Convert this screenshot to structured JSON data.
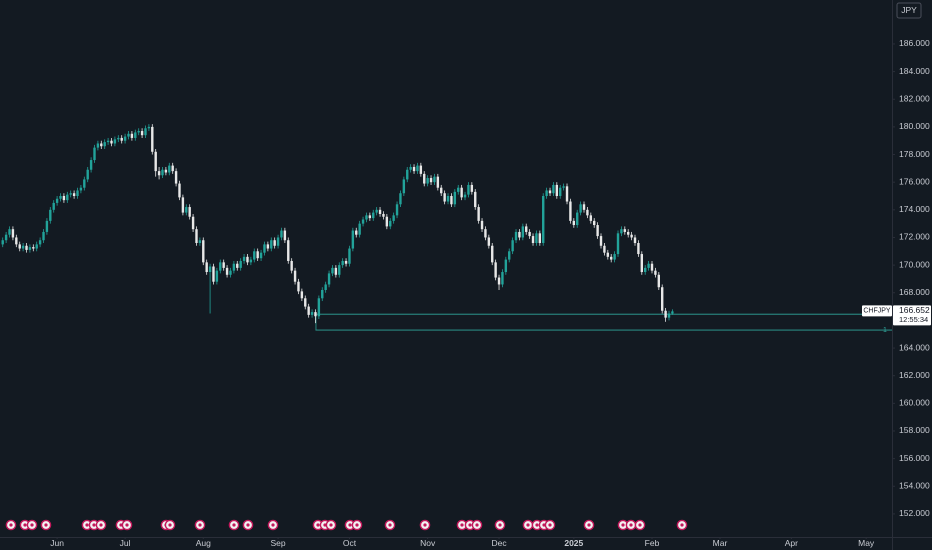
{
  "chart_data": {
    "type": "candlestick",
    "symbol": "CHFJPY",
    "currency": "JPY",
    "last_price": 166.652,
    "countdown": "12:55:34",
    "up_color": "#22a39a",
    "down_color": "#e8e8e8",
    "level_color": "#2fa69b",
    "xlim": [
      -16.8,
      245.6
    ],
    "ylim": [
      150.33,
      189.18
    ],
    "yticks": [
      {
        "value": 152,
        "label": "152.000"
      },
      {
        "value": 154,
        "label": "154.000"
      },
      {
        "value": 156,
        "label": "156.000"
      },
      {
        "value": 158,
        "label": "158.000"
      },
      {
        "value": 160,
        "label": "160.000"
      },
      {
        "value": 162,
        "label": "162.000"
      },
      {
        "value": 164,
        "label": "164.000"
      },
      {
        "value": 166,
        "label": "166.000"
      },
      {
        "value": 168,
        "label": "168.000"
      },
      {
        "value": 170,
        "label": "170.000"
      },
      {
        "value": 172,
        "label": "172.000"
      },
      {
        "value": 174,
        "label": "174.000"
      },
      {
        "value": 176,
        "label": "176.000"
      },
      {
        "value": 178,
        "label": "178.000"
      },
      {
        "value": 180,
        "label": "180.000"
      },
      {
        "value": 182,
        "label": "182.000"
      },
      {
        "value": 184,
        "label": "184.000"
      },
      {
        "value": 186,
        "label": "186.000"
      }
    ],
    "xticks": [
      {
        "value": 0,
        "label": "Jun"
      },
      {
        "value": 20,
        "label": "Jul"
      },
      {
        "value": 43,
        "label": "Aug"
      },
      {
        "value": 65,
        "label": "Sep"
      },
      {
        "value": 86,
        "label": "Oct"
      },
      {
        "value": 109,
        "label": "Nov"
      },
      {
        "value": 130,
        "label": "Dec"
      },
      {
        "value": 152,
        "label": "2025"
      },
      {
        "value": 175,
        "label": "Feb"
      },
      {
        "value": 195,
        "label": "Mar"
      },
      {
        "value": 216,
        "label": "Apr"
      },
      {
        "value": 238,
        "label": "May"
      }
    ],
    "levels": [
      {
        "value": 166.45,
        "from_x": 76
      },
      {
        "value": 165.3,
        "from_x": 76,
        "label": "1"
      }
    ],
    "x": [
      -16,
      -15,
      -14,
      -13,
      -12,
      -11,
      -10,
      -9,
      -8,
      -7,
      -6,
      -5,
      -4,
      -3,
      -2,
      -1,
      0,
      1,
      2,
      3,
      4,
      5,
      6,
      7,
      8,
      9,
      10,
      11,
      12,
      13,
      14,
      15,
      16,
      17,
      18,
      19,
      20,
      21,
      22,
      23,
      24,
      25,
      26,
      27,
      28,
      29,
      30,
      31,
      32,
      33,
      34,
      35,
      36,
      37,
      38,
      39,
      40,
      41,
      42,
      43,
      44,
      45,
      46,
      47,
      48,
      49,
      50,
      51,
      52,
      53,
      54,
      55,
      56,
      57,
      58,
      59,
      60,
      61,
      62,
      63,
      64,
      65,
      66,
      67,
      68,
      69,
      70,
      71,
      72,
      73,
      74,
      75,
      76,
      77,
      78,
      79,
      80,
      81,
      82,
      83,
      84,
      85,
      86,
      87,
      88,
      89,
      90,
      91,
      92,
      93,
      94,
      95,
      96,
      97,
      98,
      99,
      100,
      101,
      102,
      103,
      104,
      105,
      106,
      107,
      108,
      109,
      110,
      111,
      112,
      113,
      114,
      115,
      116,
      117,
      118,
      119,
      120,
      121,
      122,
      123,
      124,
      125,
      126,
      127,
      128,
      129,
      130,
      131,
      132,
      133,
      134,
      135,
      136,
      137,
      138,
      139,
      140,
      141,
      142,
      143,
      144,
      145,
      146,
      147,
      148,
      149,
      150,
      151,
      152,
      153,
      154,
      155,
      156,
      157,
      158,
      159,
      160,
      161,
      162,
      163,
      164,
      165,
      166,
      167,
      168,
      169,
      170,
      171,
      172,
      173,
      174,
      175,
      176,
      177,
      178,
      179,
      180,
      181
    ],
    "ohlc": [
      [
        171.5,
        172.0,
        171.3,
        171.8
      ],
      [
        171.8,
        172.4,
        171.6,
        172.2
      ],
      [
        172.2,
        172.8,
        172.0,
        172.6
      ],
      [
        172.6,
        172.8,
        171.8,
        172.0
      ],
      [
        172.0,
        172.2,
        171.3,
        171.5
      ],
      [
        171.5,
        171.7,
        171.0,
        171.2
      ],
      [
        171.2,
        171.6,
        171.0,
        171.4
      ],
      [
        171.4,
        171.6,
        170.9,
        171.1
      ],
      [
        171.1,
        171.5,
        170.9,
        171.3
      ],
      [
        171.3,
        171.5,
        171.0,
        171.2
      ],
      [
        171.2,
        171.7,
        171.0,
        171.5
      ],
      [
        171.5,
        172.0,
        171.3,
        171.8
      ],
      [
        171.8,
        172.6,
        171.6,
        172.4
      ],
      [
        172.4,
        173.4,
        172.2,
        173.2
      ],
      [
        173.2,
        174.2,
        173.0,
        174.0
      ],
      [
        174.0,
        174.7,
        173.8,
        174.5
      ],
      [
        174.5,
        175.0,
        174.3,
        174.8
      ],
      [
        174.8,
        175.2,
        174.6,
        175.0
      ],
      [
        175.0,
        175.2,
        174.5,
        174.7
      ],
      [
        174.7,
        175.3,
        174.5,
        175.1
      ],
      [
        175.1,
        175.4,
        174.9,
        175.2
      ],
      [
        175.2,
        175.4,
        174.8,
        175.0
      ],
      [
        175.0,
        175.6,
        174.8,
        175.4
      ],
      [
        175.4,
        175.8,
        175.2,
        175.6
      ],
      [
        175.6,
        176.4,
        175.4,
        176.2
      ],
      [
        176.2,
        177.1,
        176.0,
        176.9
      ],
      [
        176.9,
        177.8,
        176.7,
        177.6
      ],
      [
        177.6,
        178.7,
        177.4,
        178.5
      ],
      [
        178.5,
        179.0,
        178.3,
        178.8
      ],
      [
        178.8,
        179.0,
        178.4,
        178.6
      ],
      [
        178.6,
        179.1,
        178.4,
        178.9
      ],
      [
        178.9,
        179.2,
        178.7,
        179.0
      ],
      [
        179.0,
        179.2,
        178.6,
        178.8
      ],
      [
        178.8,
        179.3,
        178.6,
        179.1
      ],
      [
        179.1,
        179.4,
        178.9,
        179.2
      ],
      [
        179.2,
        179.4,
        178.8,
        179.0
      ],
      [
        179.0,
        179.5,
        178.8,
        179.3
      ],
      [
        179.3,
        179.7,
        179.1,
        179.5
      ],
      [
        179.5,
        179.7,
        179.0,
        179.2
      ],
      [
        179.2,
        179.8,
        179.0,
        179.6
      ],
      [
        179.6,
        179.9,
        179.4,
        179.7
      ],
      [
        179.7,
        179.9,
        179.2,
        179.4
      ],
      [
        179.4,
        180.1,
        179.2,
        179.9
      ],
      [
        179.9,
        180.2,
        179.7,
        180.0
      ],
      [
        180.0,
        180.2,
        178.0,
        178.2
      ],
      [
        178.2,
        178.4,
        176.4,
        176.8
      ],
      [
        176.8,
        177.1,
        176.2,
        176.5
      ],
      [
        176.5,
        177.1,
        176.3,
        176.9
      ],
      [
        176.9,
        177.1,
        176.5,
        176.7
      ],
      [
        176.7,
        177.4,
        176.5,
        177.2
      ],
      [
        177.2,
        177.4,
        176.6,
        176.8
      ],
      [
        176.8,
        177.0,
        175.7,
        175.9
      ],
      [
        175.9,
        176.1,
        174.7,
        174.9
      ],
      [
        174.9,
        175.1,
        173.6,
        173.8
      ],
      [
        173.8,
        174.4,
        173.6,
        174.2
      ],
      [
        174.2,
        174.4,
        173.3,
        173.5
      ],
      [
        173.5,
        173.7,
        172.4,
        172.6
      ],
      [
        172.6,
        172.8,
        171.4,
        171.6
      ],
      [
        171.6,
        172.0,
        171.4,
        171.8
      ],
      [
        171.8,
        172.0,
        170.0,
        170.2
      ],
      [
        170.2,
        170.4,
        169.3,
        169.5
      ],
      [
        169.5,
        170.1,
        166.5,
        169.9
      ],
      [
        169.9,
        170.1,
        168.6,
        168.8
      ],
      [
        168.8,
        169.8,
        168.6,
        169.6
      ],
      [
        169.6,
        170.4,
        169.4,
        170.2
      ],
      [
        170.2,
        170.4,
        169.6,
        169.8
      ],
      [
        169.8,
        170.0,
        169.1,
        169.3
      ],
      [
        169.3,
        169.8,
        169.1,
        169.6
      ],
      [
        169.6,
        170.3,
        169.4,
        170.1
      ],
      [
        170.1,
        170.3,
        169.6,
        169.8
      ],
      [
        169.8,
        170.5,
        169.6,
        170.3
      ],
      [
        170.3,
        170.8,
        170.1,
        170.6
      ],
      [
        170.6,
        170.8,
        170.0,
        170.2
      ],
      [
        170.2,
        170.6,
        170.0,
        170.4
      ],
      [
        170.4,
        171.2,
        170.2,
        171.0
      ],
      [
        171.0,
        171.2,
        170.3,
        170.5
      ],
      [
        170.5,
        171.1,
        170.3,
        170.9
      ],
      [
        170.9,
        171.7,
        170.7,
        171.5
      ],
      [
        171.5,
        171.7,
        171.0,
        171.2
      ],
      [
        171.2,
        172.0,
        171.0,
        171.8
      ],
      [
        171.8,
        172.0,
        171.2,
        171.4
      ],
      [
        171.4,
        172.2,
        171.2,
        172.0
      ],
      [
        172.0,
        172.7,
        171.8,
        172.5
      ],
      [
        172.5,
        172.7,
        171.6,
        171.8
      ],
      [
        171.8,
        172.0,
        170.1,
        170.3
      ],
      [
        170.3,
        170.5,
        169.4,
        169.6
      ],
      [
        169.6,
        169.8,
        168.6,
        168.8
      ],
      [
        168.8,
        169.0,
        167.9,
        168.1
      ],
      [
        168.1,
        168.3,
        167.4,
        167.6
      ],
      [
        167.6,
        167.8,
        166.8,
        167.0
      ],
      [
        167.0,
        167.2,
        166.2,
        166.4
      ],
      [
        166.4,
        166.8,
        166.2,
        166.6
      ],
      [
        166.6,
        166.8,
        165.8,
        166.3
      ],
      [
        166.3,
        167.8,
        166.1,
        167.6
      ],
      [
        167.6,
        168.4,
        167.4,
        168.2
      ],
      [
        168.2,
        168.8,
        168.0,
        168.6
      ],
      [
        168.6,
        169.6,
        168.4,
        169.4
      ],
      [
        169.4,
        170.0,
        169.2,
        169.8
      ],
      [
        169.8,
        170.0,
        169.1,
        169.3
      ],
      [
        169.3,
        170.2,
        169.1,
        170.0
      ],
      [
        170.0,
        170.5,
        169.8,
        170.3
      ],
      [
        170.3,
        170.5,
        169.9,
        170.1
      ],
      [
        170.1,
        171.4,
        169.9,
        171.2
      ],
      [
        171.2,
        172.7,
        171.0,
        172.5
      ],
      [
        172.5,
        172.7,
        172.0,
        172.2
      ],
      [
        172.2,
        173.2,
        172.0,
        173.0
      ],
      [
        173.0,
        173.5,
        172.8,
        173.3
      ],
      [
        173.3,
        173.8,
        173.1,
        173.6
      ],
      [
        173.6,
        173.8,
        173.2,
        173.4
      ],
      [
        173.4,
        174.0,
        173.2,
        173.8
      ],
      [
        173.8,
        174.2,
        173.6,
        174.0
      ],
      [
        174.0,
        174.2,
        173.5,
        173.7
      ],
      [
        173.7,
        173.9,
        173.3,
        173.5
      ],
      [
        173.5,
        173.7,
        172.6,
        172.8
      ],
      [
        172.8,
        173.4,
        172.6,
        173.2
      ],
      [
        173.2,
        173.8,
        173.0,
        173.6
      ],
      [
        173.6,
        174.6,
        173.4,
        174.4
      ],
      [
        174.4,
        175.4,
        174.2,
        175.2
      ],
      [
        175.2,
        176.4,
        175.0,
        176.2
      ],
      [
        176.2,
        177.1,
        176.0,
        176.9
      ],
      [
        176.9,
        177.3,
        176.7,
        177.1
      ],
      [
        177.1,
        177.3,
        176.6,
        176.8
      ],
      [
        176.8,
        177.4,
        176.6,
        177.2
      ],
      [
        177.2,
        177.4,
        176.4,
        176.6
      ],
      [
        176.6,
        176.8,
        175.7,
        175.9
      ],
      [
        175.9,
        176.5,
        175.7,
        176.3
      ],
      [
        176.3,
        176.5,
        175.8,
        176.0
      ],
      [
        176.0,
        176.6,
        175.8,
        176.4
      ],
      [
        176.4,
        176.6,
        175.4,
        175.6
      ],
      [
        175.6,
        175.8,
        175.0,
        175.2
      ],
      [
        175.2,
        175.4,
        174.4,
        174.6
      ],
      [
        174.6,
        175.2,
        174.4,
        175.0
      ],
      [
        175.0,
        175.2,
        174.2,
        174.4
      ],
      [
        174.4,
        175.5,
        174.2,
        175.3
      ],
      [
        175.3,
        175.8,
        175.1,
        175.6
      ],
      [
        175.6,
        175.8,
        174.7,
        174.9
      ],
      [
        174.9,
        175.3,
        174.7,
        175.1
      ],
      [
        175.1,
        176.0,
        174.9,
        175.8
      ],
      [
        175.8,
        176.0,
        175.1,
        175.3
      ],
      [
        175.3,
        175.5,
        174.0,
        174.2
      ],
      [
        174.2,
        174.4,
        173.0,
        173.2
      ],
      [
        173.2,
        173.4,
        172.4,
        172.6
      ],
      [
        172.6,
        172.8,
        171.8,
        172.0
      ],
      [
        172.0,
        172.2,
        171.2,
        171.4
      ],
      [
        171.4,
        171.6,
        170.0,
        170.2
      ],
      [
        170.2,
        170.4,
        168.9,
        169.1
      ],
      [
        169.1,
        169.3,
        168.2,
        168.6
      ],
      [
        168.6,
        169.7,
        168.4,
        169.5
      ],
      [
        169.5,
        170.6,
        169.3,
        170.4
      ],
      [
        170.4,
        171.2,
        170.2,
        171.0
      ],
      [
        171.0,
        172.0,
        170.8,
        171.8
      ],
      [
        171.8,
        172.6,
        171.6,
        172.4
      ],
      [
        172.4,
        172.6,
        171.8,
        172.0
      ],
      [
        172.0,
        173.0,
        171.8,
        172.8
      ],
      [
        172.8,
        173.0,
        172.2,
        172.4
      ],
      [
        172.4,
        172.6,
        171.9,
        172.1
      ],
      [
        172.1,
        172.3,
        171.4,
        171.6
      ],
      [
        171.6,
        172.5,
        171.4,
        172.3
      ],
      [
        172.3,
        172.5,
        171.4,
        171.6
      ],
      [
        171.6,
        175.2,
        171.4,
        175.0
      ],
      [
        175.0,
        175.6,
        174.8,
        175.4
      ],
      [
        175.4,
        175.6,
        175.0,
        175.2
      ],
      [
        175.2,
        176.0,
        175.0,
        175.8
      ],
      [
        175.8,
        176.0,
        174.8,
        175.0
      ],
      [
        175.0,
        175.8,
        174.8,
        175.6
      ],
      [
        175.6,
        175.9,
        175.4,
        175.7
      ],
      [
        175.7,
        175.9,
        174.4,
        174.6
      ],
      [
        174.6,
        174.8,
        173.0,
        173.2
      ],
      [
        173.2,
        173.4,
        172.7,
        172.9
      ],
      [
        172.9,
        174.0,
        172.7,
        173.8
      ],
      [
        173.8,
        174.6,
        173.6,
        174.4
      ],
      [
        174.4,
        174.6,
        173.8,
        174.0
      ],
      [
        174.0,
        174.2,
        173.4,
        173.6
      ],
      [
        173.6,
        173.8,
        173.0,
        173.2
      ],
      [
        173.2,
        173.4,
        172.7,
        172.9
      ],
      [
        172.9,
        173.1,
        171.9,
        172.1
      ],
      [
        172.1,
        172.3,
        171.2,
        171.4
      ],
      [
        171.4,
        171.6,
        170.7,
        170.9
      ],
      [
        170.9,
        171.1,
        170.4,
        170.6
      ],
      [
        170.6,
        170.8,
        170.2,
        170.4
      ],
      [
        170.4,
        171.0,
        170.2,
        170.8
      ],
      [
        170.8,
        172.5,
        170.6,
        172.3
      ],
      [
        172.3,
        172.8,
        172.1,
        172.6
      ],
      [
        172.6,
        172.8,
        172.2,
        172.4
      ],
      [
        172.4,
        172.6,
        172.0,
        172.2
      ],
      [
        172.2,
        172.4,
        171.8,
        172.0
      ],
      [
        172.0,
        172.2,
        171.4,
        171.6
      ],
      [
        171.6,
        171.8,
        170.6,
        170.8
      ],
      [
        170.8,
        171.0,
        169.3,
        169.5
      ],
      [
        169.5,
        170.0,
        169.3,
        169.8
      ],
      [
        169.8,
        170.3,
        169.6,
        170.1
      ],
      [
        170.1,
        170.3,
        169.4,
        169.6
      ],
      [
        169.6,
        169.8,
        169.1,
        169.3
      ],
      [
        169.3,
        169.5,
        168.2,
        168.4
      ],
      [
        168.4,
        168.6,
        166.5,
        166.7
      ],
      [
        166.7,
        166.9,
        165.9,
        166.2
      ],
      [
        166.2,
        166.7,
        166.0,
        166.5
      ],
      [
        166.5,
        166.8,
        166.4,
        166.652
      ]
    ]
  }
}
